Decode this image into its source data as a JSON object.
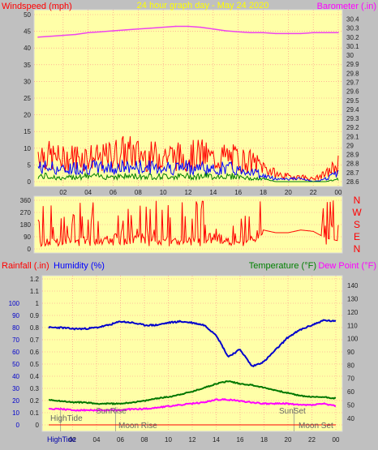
{
  "header": {
    "windspeed_label": "Windspeed (mph)",
    "title": "24 hour graph day - May 24 2020",
    "barometer_label": "Barometer (.in)"
  },
  "colors": {
    "plot_bg": "#ffffa8",
    "page_bg": "#c0c0c0",
    "wind": "#ff0000",
    "gust": "#ff0000",
    "wind_avg": "#0000ff",
    "wind_low": "#008000",
    "barometer": "#ee44ee",
    "humidity": "#0000cc",
    "temperature": "#007700",
    "dewpoint": "#ff00ff",
    "rainfall": "#ff0000",
    "grid": "#ff8888",
    "label_left": "#ff0000",
    "label_humidity": "#0000ff",
    "label_temp": "#008000",
    "label_dew": "#ff00ff",
    "label_title": "#ffff00",
    "label_baro": "#ff00ff",
    "axis_text": "#222222",
    "event_text": "#666666"
  },
  "x_ticks": [
    "02",
    "04",
    "06",
    "08",
    "10",
    "12",
    "14",
    "16",
    "18",
    "20",
    "22",
    "00"
  ],
  "wind_direction_labels": [
    "N",
    "W",
    "S",
    "E",
    "N"
  ],
  "events": {
    "hightide": "HighTide",
    "sunrise": "SunRise",
    "moonrise": "Moon Rise",
    "sunset": "SunSet",
    "moonset": "Moon Set",
    "hightide_bottom": "HighTide"
  },
  "chart_data": [
    {
      "type": "line",
      "title": "24 hour graph day - May 24 2020",
      "ylabel": "Windspeed (mph)",
      "ylabel_right": "Barometer (.in)",
      "ylim": [
        0,
        50
      ],
      "yticks": [
        0,
        5,
        10,
        15,
        20,
        25,
        30,
        35,
        40,
        45,
        50
      ],
      "ylim_right": [
        28.6,
        30.45
      ],
      "yticks_right": [
        "28.6",
        "28.7",
        "28.8",
        "28.9",
        "29",
        "29.1",
        "29.2",
        "29.3",
        "29.4",
        "29.5",
        "29.6",
        "29.7",
        "29.8",
        "29.9",
        "30",
        "30.1",
        "30.2",
        "30.3",
        "30.4"
      ],
      "x_hours": [
        0,
        1,
        2,
        3,
        4,
        5,
        6,
        7,
        8,
        9,
        10,
        11,
        12,
        13,
        14,
        15,
        16,
        17,
        18,
        19,
        20,
        21,
        22,
        23,
        24
      ],
      "series": [
        {
          "name": "Barometer",
          "values": [
            30.2,
            30.21,
            30.22,
            30.23,
            30.25,
            30.26,
            30.27,
            30.28,
            30.29,
            30.3,
            30.31,
            30.32,
            30.32,
            30.31,
            30.29,
            30.27,
            30.26,
            30.25,
            30.25,
            30.24,
            30.24,
            30.24,
            30.25,
            30.25,
            30.25
          ]
        },
        {
          "name": "Gust",
          "values": [
            12,
            10,
            9,
            10,
            10,
            9,
            11,
            12,
            11,
            10,
            11,
            10,
            10,
            11,
            9,
            10,
            9,
            8,
            6,
            3,
            2,
            2,
            1,
            3,
            7
          ]
        },
        {
          "name": "Wind",
          "values": [
            5,
            5,
            4,
            5,
            5,
            5,
            5,
            5,
            5,
            5,
            5,
            5,
            5,
            5,
            4,
            5,
            4,
            4,
            2,
            1,
            1,
            1,
            0,
            1,
            3
          ]
        },
        {
          "name": "Wind low",
          "values": [
            2,
            2,
            1,
            2,
            2,
            2,
            2,
            2,
            2,
            2,
            2,
            2,
            2,
            2,
            2,
            2,
            2,
            1,
            1,
            0,
            0,
            0,
            0,
            0,
            1
          ]
        }
      ]
    },
    {
      "type": "scatter",
      "ylabel": "Wind direction (deg)",
      "ylim": [
        0,
        360
      ],
      "yticks": [
        0,
        90,
        180,
        270,
        360
      ],
      "x_hours": [
        0,
        1,
        2,
        3,
        4,
        5,
        6,
        7,
        8,
        9,
        10,
        11,
        12,
        13,
        14,
        15,
        16,
        17,
        18,
        19,
        20,
        21,
        22,
        23,
        24
      ],
      "series": [
        {
          "name": "Direction",
          "values": [
            40,
            60,
            80,
            50,
            90,
            70,
            100,
            60,
            80,
            90,
            70,
            50,
            60,
            80,
            90,
            70,
            40,
            60,
            140,
            120,
            120,
            140,
            130,
            80,
            60
          ]
        }
      ]
    },
    {
      "type": "line",
      "ylabel_rain": "Rainfall (.in)",
      "ylabel_humidity": "Humidity (%)",
      "ylabel_temp": "Temperature (°F)",
      "ylabel_dew": "Dew Point (°F)",
      "ylim_rain": [
        0,
        1.2
      ],
      "yticks_rain": [
        "0",
        "0.1",
        "0.2",
        "0.3",
        "0.4",
        "0.5",
        "0.6",
        "0.7",
        "0.8",
        "0.9",
        "1",
        "1.1",
        "1.2"
      ],
      "ylim_humidity": [
        0,
        100
      ],
      "yticks_humidity": [
        "0",
        "10",
        "20",
        "30",
        "40",
        "50",
        "60",
        "70",
        "80",
        "90",
        "100"
      ],
      "ylim_temp": [
        35,
        145
      ],
      "yticks_temp": [
        "40",
        "50",
        "60",
        "70",
        "80",
        "90",
        "100",
        "110",
        "120",
        "130",
        "140"
      ],
      "x_hours": [
        0,
        1,
        2,
        3,
        4,
        5,
        6,
        7,
        8,
        9,
        10,
        11,
        12,
        13,
        14,
        15,
        16,
        17,
        18,
        19,
        20,
        21,
        22,
        23,
        24
      ],
      "series": [
        {
          "name": "Humidity",
          "values": [
            80,
            80,
            79,
            79,
            80,
            82,
            85,
            84,
            82,
            82,
            84,
            85,
            84,
            82,
            74,
            56,
            62,
            48,
            52,
            62,
            72,
            78,
            82,
            86,
            85
          ]
        },
        {
          "name": "Temperature",
          "values": [
            54,
            53,
            52,
            52,
            51,
            51,
            51,
            52,
            53,
            55,
            56,
            58,
            60,
            63,
            66,
            68,
            66,
            65,
            63,
            61,
            59,
            57,
            56,
            56,
            55
          ]
        },
        {
          "name": "Dew Point",
          "values": [
            47,
            47,
            46,
            46,
            46,
            46,
            46,
            47,
            47,
            48,
            49,
            50,
            51,
            52,
            54,
            54,
            53,
            52,
            51,
            51,
            51,
            50,
            50,
            51,
            49
          ]
        },
        {
          "name": "Rainfall",
          "values": [
            0,
            0,
            0,
            0,
            0,
            0,
            0,
            0,
            0,
            0,
            0,
            0,
            0,
            0,
            0,
            0,
            0,
            0,
            0,
            0,
            0,
            0,
            0,
            0,
            0
          ]
        }
      ]
    }
  ]
}
